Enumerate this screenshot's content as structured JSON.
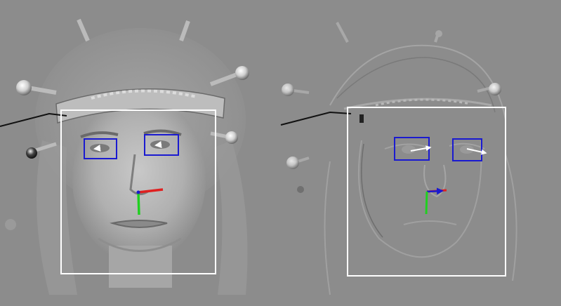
{
  "colors": {
    "background": "#8c8c8c",
    "face_box": "#ffffff",
    "eye_box": "#1a1ad0",
    "gaze_arrow": "#ffffff",
    "axis_x": "#e02020",
    "axis_y": "#20d020",
    "axis_z": "#1a1ad0",
    "cable": "#111111"
  },
  "panels": [
    {
      "name": "left-panel",
      "style": "grayscale-textured-face"
    },
    {
      "name": "right-panel",
      "style": "faint-embossed-face"
    }
  ]
}
